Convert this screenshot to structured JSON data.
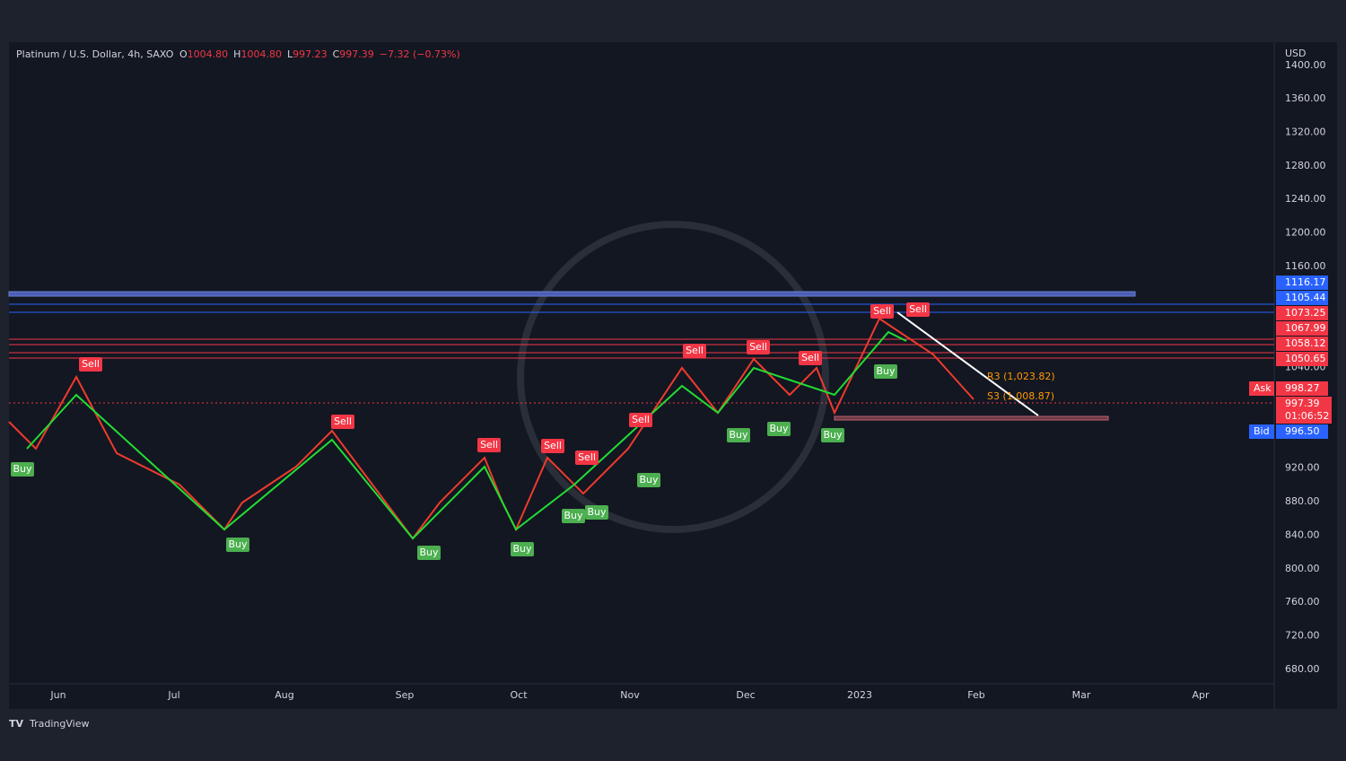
{
  "header": {
    "symbol": "Platinum / U.S. Dollar, 4h, SAXO",
    "open_label": "O",
    "open": "1004.80",
    "high_label": "H",
    "high": "1004.80",
    "low_label": "L",
    "low": "997.23",
    "close_label": "C",
    "close": "997.39",
    "change": "−7.32 (−0.73%)"
  },
  "price_axis": {
    "currency": "USD",
    "labels": [
      "1400.00",
      "1360.00",
      "1320.00",
      "1280.00",
      "1240.00",
      "1200.00",
      "1160.00",
      "1040.00",
      "920.00",
      "880.00",
      "840.00",
      "800.00",
      "760.00",
      "720.00",
      "680.00"
    ]
  },
  "price_tags": [
    {
      "text": "1116.17",
      "color": "#2962ff"
    },
    {
      "text": "1105.44",
      "color": "#2962ff"
    },
    {
      "text": "1073.25",
      "color": "#f23645"
    },
    {
      "text": "1067.99",
      "color": "#f23645"
    },
    {
      "text": "1058.12",
      "color": "#f23645"
    },
    {
      "text": "1050.65",
      "color": "#f23645"
    }
  ],
  "quote": {
    "ask_label": "Ask",
    "ask": "998.27",
    "last": "997.39",
    "countdown": "01:06:52",
    "bid_label": "Bid",
    "bid": "996.50"
  },
  "time_axis": [
    "Jun",
    "Jul",
    "Aug",
    "Sep",
    "Oct",
    "Nov",
    "Dec",
    "2023",
    "Feb",
    "Mar",
    "Apr"
  ],
  "signals": [
    "Buy",
    "Buy",
    "Buy",
    "Buy",
    "Buy",
    "Buy",
    "Buy",
    "Buy",
    "Buy",
    "Buy",
    "Buy",
    "Sell",
    "Sell",
    "Sell",
    "Sell",
    "Sell",
    "Sell",
    "Sell",
    "Sell",
    "Sell",
    "Sell",
    "Sell"
  ],
  "pivots": [
    "R3 (1,023.82)",
    "S3 (1,008.87)"
  ],
  "footer": "TradingView"
}
